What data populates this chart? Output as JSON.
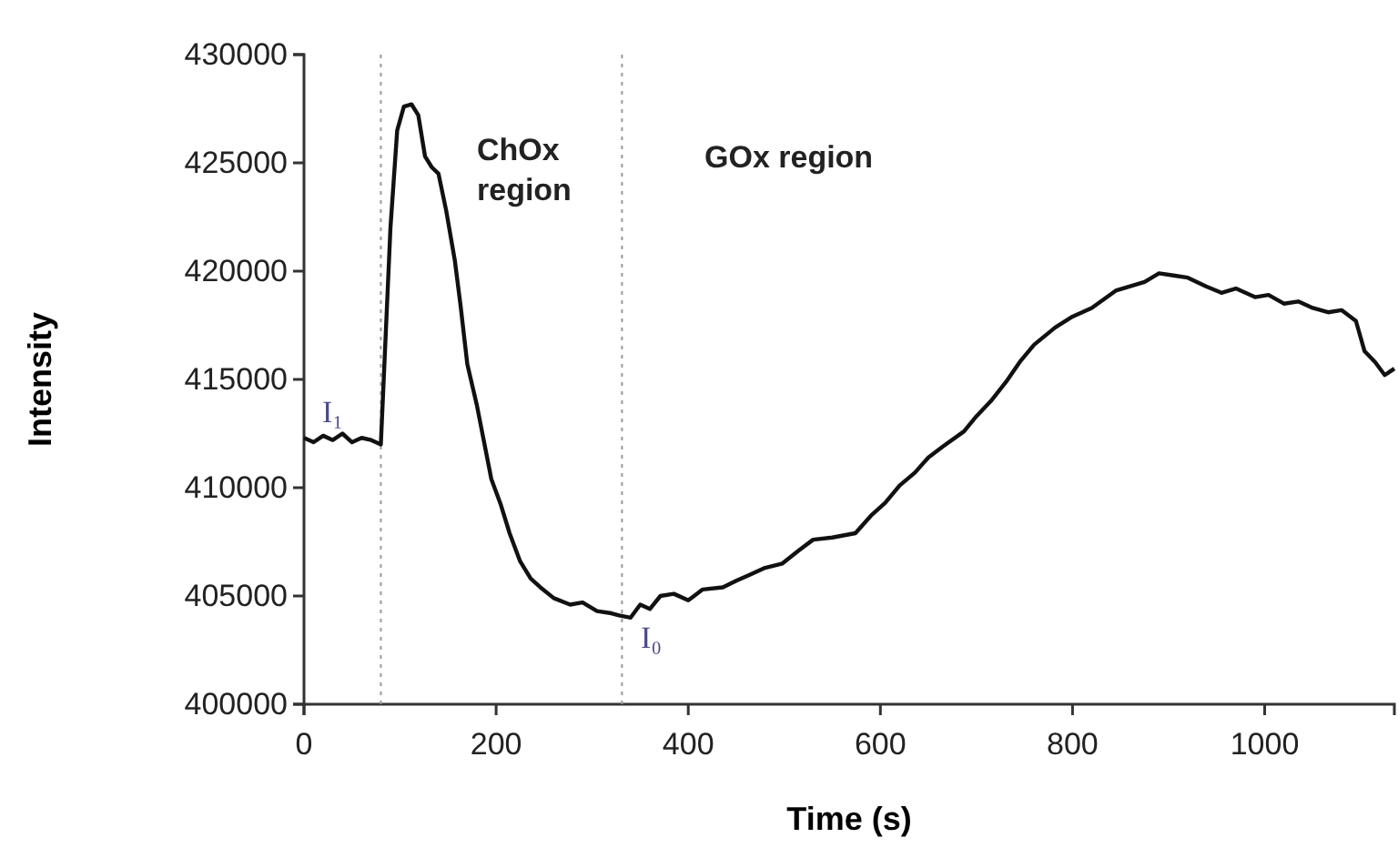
{
  "chart_data": {
    "type": "line",
    "xlabel": "Time (s)",
    "ylabel": "Intensity",
    "xlim": [
      0,
      1135
    ],
    "xticks": [
      0,
      200,
      400,
      600,
      800,
      1000
    ],
    "ylim": [
      400000,
      430000
    ],
    "yticks": [
      400000,
      405000,
      410000,
      415000,
      420000,
      425000,
      430000
    ],
    "grid": false,
    "marker": "none",
    "line_style": "solid",
    "series": [
      {
        "color": "#111111",
        "x": [
          0,
          10,
          20,
          30,
          40,
          50,
          60,
          70,
          80,
          84,
          90,
          97,
          104,
          112,
          119,
          126,
          133,
          140,
          148,
          157,
          163,
          170,
          180,
          195,
          205,
          214,
          225,
          236,
          246,
          260,
          277,
          290,
          305,
          320,
          328,
          340,
          350,
          360,
          371,
          385,
          400,
          415,
          436,
          450,
          465,
          480,
          498,
          515,
          530,
          550,
          574,
          590,
          605,
          620,
          636,
          650,
          665,
          687,
          700,
          715,
          731,
          745,
          760,
          782,
          800,
          820,
          845,
          860,
          875,
          890,
          905,
          920,
          939,
          955,
          970,
          990,
          1004,
          1020,
          1035,
          1050,
          1066,
          1080,
          1095,
          1104,
          1115,
          1125,
          1135
        ],
        "values": [
          412300,
          412100,
          412400,
          412200,
          412500,
          412100,
          412300,
          412200,
          412000,
          416000,
          422000,
          426500,
          427600,
          427700,
          427200,
          425300,
          424800,
          424500,
          422800,
          420500,
          418400,
          415700,
          413800,
          410400,
          409200,
          407900,
          406600,
          405800,
          405400,
          404900,
          404600,
          404700,
          404300,
          404200,
          404100,
          404000,
          404600,
          404400,
          405000,
          405100,
          404800,
          405300,
          405400,
          405700,
          406000,
          406300,
          406500,
          407100,
          407600,
          407700,
          407900,
          408700,
          409300,
          410100,
          410700,
          411400,
          411900,
          412600,
          413300,
          414000,
          414900,
          415800,
          416600,
          417400,
          417900,
          418300,
          419100,
          419300,
          419500,
          419900,
          419800,
          419700,
          419300,
          419000,
          419200,
          418800,
          418900,
          418500,
          418600,
          418300,
          418100,
          418200,
          417700,
          416300,
          415800,
          415200,
          415500
        ]
      }
    ],
    "ref_lines": [
      {
        "axis": "x",
        "value": 80,
        "color": "#999999",
        "line_style": "dotted"
      },
      {
        "axis": "x",
        "value": 331,
        "color": "#999999",
        "line_style": "dotted"
      }
    ],
    "annotations": [
      "I₁",
      "I₀",
      "ChOx region",
      "GOx region"
    ]
  }
}
